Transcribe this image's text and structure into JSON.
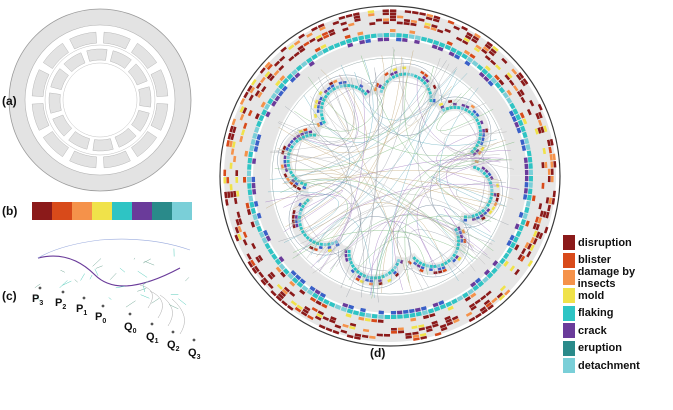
{
  "panels": {
    "a": "(a)",
    "b": "(b)",
    "c": "(c)",
    "d": "(d)"
  },
  "legend": [
    {
      "label": "disruption",
      "color": "#8b1a1a"
    },
    {
      "label": "blister",
      "color": "#d84a1a"
    },
    {
      "label": "damage by insects",
      "color": "#f5924a"
    },
    {
      "label": "mold",
      "color": "#f0e24a"
    },
    {
      "label": "flaking",
      "color": "#2ec4c4"
    },
    {
      "label": "crack",
      "color": "#6a3b9a"
    },
    {
      "label": "eruption",
      "color": "#2a8a8a"
    },
    {
      "label": "detachment",
      "color": "#7acfd8"
    }
  ],
  "colorbar": [
    "#8b1a1a",
    "#d84a1a",
    "#f5924a",
    "#f0e24a",
    "#2ec4c4",
    "#6a3b9a",
    "#2a8a8a",
    "#7acfd8"
  ],
  "panel_c": {
    "labels_p": [
      "P3",
      "P2",
      "P1",
      "P0"
    ],
    "labels_q": [
      "Q0",
      "Q1",
      "Q2",
      "Q3"
    ]
  },
  "caption": ""
}
